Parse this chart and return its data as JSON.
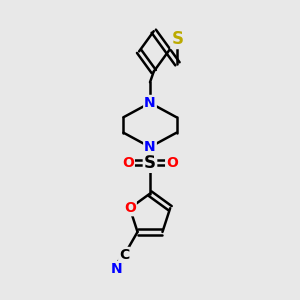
{
  "bg_color": "#e8e8e8",
  "bond_color": "black",
  "bond_width": 1.8,
  "atom_colors": {
    "C": "black",
    "N": "blue",
    "O": "red",
    "S_thio": "#bbaa00",
    "S_sulfone": "black"
  },
  "font_size": 10,
  "fig_size": [
    3.0,
    3.0
  ],
  "dpi": 100
}
